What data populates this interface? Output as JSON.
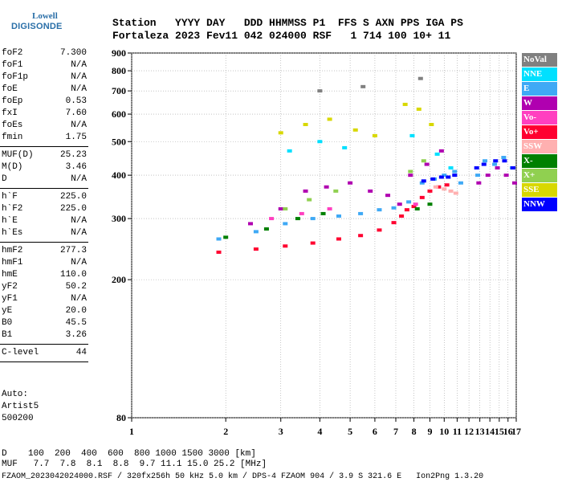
{
  "logo": {
    "brand": "Lowell",
    "product": "DIGISONDE"
  },
  "header": {
    "line1": "Station   YYYY DAY   DDD HHMMSS P1  FFS S AXN PPS IGA PS",
    "line2": "Fortaleza 2023 Fev11 042 024000 RSF   1 714 100 10+ 11"
  },
  "params": {
    "group1": [
      {
        "k": "foF2",
        "v": "7.300"
      },
      {
        "k": "foF1",
        "v": "N/A"
      },
      {
        "k": "foF1p",
        "v": "N/A"
      },
      {
        "k": "foE",
        "v": "N/A"
      },
      {
        "k": "foEp",
        "v": "0.53"
      },
      {
        "k": "fxI",
        "v": "7.60"
      },
      {
        "k": "foEs",
        "v": "N/A"
      },
      {
        "k": "fmin",
        "v": "1.75"
      }
    ],
    "group2": [
      {
        "k": "MUF(D)",
        "v": "25.23"
      },
      {
        "k": "M(D)",
        "v": "3.46"
      },
      {
        "k": "D",
        "v": "N/A"
      }
    ],
    "group3": [
      {
        "k": "h`F",
        "v": "225.0"
      },
      {
        "k": "h`F2",
        "v": "225.0"
      },
      {
        "k": "h`E",
        "v": "N/A"
      },
      {
        "k": "h`Es",
        "v": "N/A"
      }
    ],
    "group4": [
      {
        "k": "hmF2",
        "v": "277.3"
      },
      {
        "k": "hmF1",
        "v": "N/A"
      },
      {
        "k": "hmE",
        "v": "110.0"
      },
      {
        "k": "yF2",
        "v": "50.2"
      },
      {
        "k": "yF1",
        "v": "N/A"
      },
      {
        "k": "yE",
        "v": "20.0"
      },
      {
        "k": "B0",
        "v": "45.5"
      },
      {
        "k": "B1",
        "v": "3.26"
      }
    ],
    "group5": [
      {
        "k": "C-level",
        "v": "44"
      }
    ]
  },
  "auto": {
    "line1": "Auto:",
    "line2": "Artist5",
    "line3": "500200"
  },
  "legend": [
    {
      "label": "NoVal",
      "color": "#808080"
    },
    {
      "label": "NNE",
      "color": "#00e0ff"
    },
    {
      "label": "E",
      "color": "#3fa9f5"
    },
    {
      "label": "W",
      "color": "#b000b0"
    },
    {
      "label": "Vo-",
      "color": "#ff40c0"
    },
    {
      "label": "Vo+",
      "color": "#ff0030"
    },
    {
      "label": "SSW",
      "color": "#ffb0b0"
    },
    {
      "label": "X-",
      "color": "#008000"
    },
    {
      "label": "X+",
      "color": "#90d050"
    },
    {
      "label": "SSE",
      "color": "#d8d800"
    },
    {
      "label": "NNW",
      "color": "#0000ff"
    }
  ],
  "footer": {
    "line1": "D    100  200  400  600  800 1000 1500 3000 [km]",
    "line2": "MUF   7.7  7.8  8.1  8.8  9.7 11.1 15.0 25.2 [MHz]",
    "line3": "FZAOM_2023042024000.RSF / 320fx256h 50 kHz 5.0 km / DPS-4 FZAOM 904 / 3.9 S 321.6 E   Ion2Png 1.3.20"
  },
  "chart_data": {
    "type": "scatter",
    "xlim": [
      1,
      17
    ],
    "ylim": [
      80,
      900
    ],
    "x_scale": "log",
    "y_scale": "log",
    "x_ticks": [
      1,
      2,
      3,
      4,
      5,
      6,
      7,
      8,
      9,
      10,
      11,
      12,
      13,
      14,
      15,
      16,
      17
    ],
    "y_ticks": [
      80,
      200,
      300,
      400,
      500,
      600,
      700,
      800,
      900
    ],
    "grid": true,
    "legend_position": "right",
    "series": [
      {
        "name": "Vo+",
        "x": [
          1.9,
          2.5,
          3.1,
          3.8,
          4.6,
          5.4,
          6.2,
          6.9,
          7.3,
          7.6,
          8.0,
          8.5,
          9.0,
          9.6,
          10.2
        ],
        "y": [
          240,
          245,
          250,
          255,
          262,
          268,
          278,
          292,
          305,
          318,
          325,
          345,
          360,
          370,
          375
        ]
      },
      {
        "name": "E",
        "x": [
          1.9,
          2.5,
          3.1,
          3.8,
          4.6,
          5.4,
          6.2,
          6.9,
          7.7,
          8.5,
          9.3,
          10.0,
          10.8,
          11.3,
          12.8,
          13.5,
          14.5,
          15.5,
          16.5
        ],
        "y": [
          262,
          275,
          290,
          300,
          305,
          310,
          318,
          322,
          335,
          380,
          390,
          400,
          410,
          380,
          400,
          440,
          430,
          450,
          420
        ]
      },
      {
        "name": "NNW",
        "x": [
          8.6,
          9.2,
          9.8,
          10.3,
          10.8,
          12.7,
          13.4,
          14.6,
          15.6,
          16.6
        ],
        "y": [
          385,
          390,
          395,
          395,
          400,
          420,
          430,
          440,
          440,
          420
        ]
      },
      {
        "name": "W",
        "x": [
          2.4,
          3.0,
          3.6,
          4.2,
          5.0,
          5.8,
          6.6,
          7.2,
          7.8,
          8.8,
          9.8,
          12.9,
          13.8,
          14.8,
          15.8,
          16.8
        ],
        "y": [
          290,
          320,
          360,
          370,
          380,
          360,
          350,
          330,
          400,
          430,
          470,
          380,
          400,
          420,
          400,
          380
        ]
      },
      {
        "name": "SSE",
        "x": [
          3.0,
          3.6,
          4.3,
          5.2,
          6.0,
          7.5,
          8.3,
          9.1
        ],
        "y": [
          530,
          560,
          580,
          540,
          520,
          640,
          620,
          560
        ]
      },
      {
        "name": "SSW",
        "x": [
          9.4,
          10.0,
          10.5,
          10.9
        ],
        "y": [
          370,
          365,
          360,
          355
        ]
      },
      {
        "name": "X-",
        "x": [
          2.0,
          2.7,
          3.4,
          4.1,
          8.2,
          9.0
        ],
        "y": [
          265,
          280,
          300,
          310,
          320,
          330
        ]
      },
      {
        "name": "X+",
        "x": [
          3.1,
          3.7,
          4.5,
          7.8,
          8.6
        ],
        "y": [
          320,
          340,
          360,
          410,
          440
        ]
      },
      {
        "name": "NNE",
        "x": [
          3.2,
          4.0,
          4.8,
          7.9,
          9.5,
          10.5
        ],
        "y": [
          470,
          500,
          480,
          520,
          460,
          420
        ]
      },
      {
        "name": "Vo-",
        "x": [
          2.8,
          3.5,
          4.3,
          8.1
        ],
        "y": [
          300,
          310,
          320,
          330
        ]
      },
      {
        "name": "NoVal",
        "x": [
          4.0,
          5.5,
          8.4
        ],
        "y": [
          700,
          720,
          760
        ]
      }
    ]
  }
}
